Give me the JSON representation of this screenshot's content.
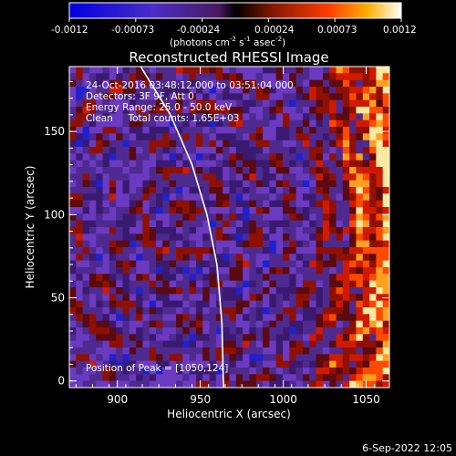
{
  "colorbar": {
    "tick_labels": [
      "-0.0012",
      "-0.00073",
      "-0.00024",
      "0.00024",
      "0.00073",
      "0.0012"
    ],
    "unit_main": "(photons cm",
    "unit_sup1": "-2",
    "unit_mid": " s",
    "unit_sup2": "-1",
    "unit_mid2": " asec",
    "unit_sup3": "-2",
    "unit_end": ")",
    "range": [
      -0.0012,
      0.0012
    ]
  },
  "chart_data": {
    "type": "heatmap",
    "title": "Reconstructed RHESSI Image",
    "xlabel": "Heliocentric X (arcsec)",
    "ylabel": "Heliocentric Y (arcsec)",
    "xlim": [
      871,
      1064
    ],
    "ylim": [
      -4,
      189
    ],
    "x_ticks": [
      900,
      950,
      1000,
      1050
    ],
    "y_ticks": [
      0,
      50,
      100,
      150
    ],
    "annotations": [
      "24-Oct-2016 03:48:12.000 to 03:51:04.000",
      "Detectors: 3F 9F, Att 0",
      "Energy Range: 25.0 - 50.0 keV",
      "Clean     Total counts: 1.65E+03"
    ],
    "peak_label": "Position of Peak = [1050,124]",
    "peak": [
      1050,
      124
    ],
    "limb_line": [
      [
        914,
        189
      ],
      [
        932,
        160
      ],
      [
        945,
        130
      ],
      [
        954,
        100
      ],
      [
        960,
        70
      ],
      [
        963,
        35
      ],
      [
        964,
        -4
      ]
    ],
    "grid": false,
    "colors": {
      "negative": "#0000ff",
      "zero": "#5a2a9a",
      "positive": "#ff3000",
      "max": "#ffffff"
    }
  },
  "footer": {
    "timestamp": "6-Sep-2022 12:05"
  }
}
